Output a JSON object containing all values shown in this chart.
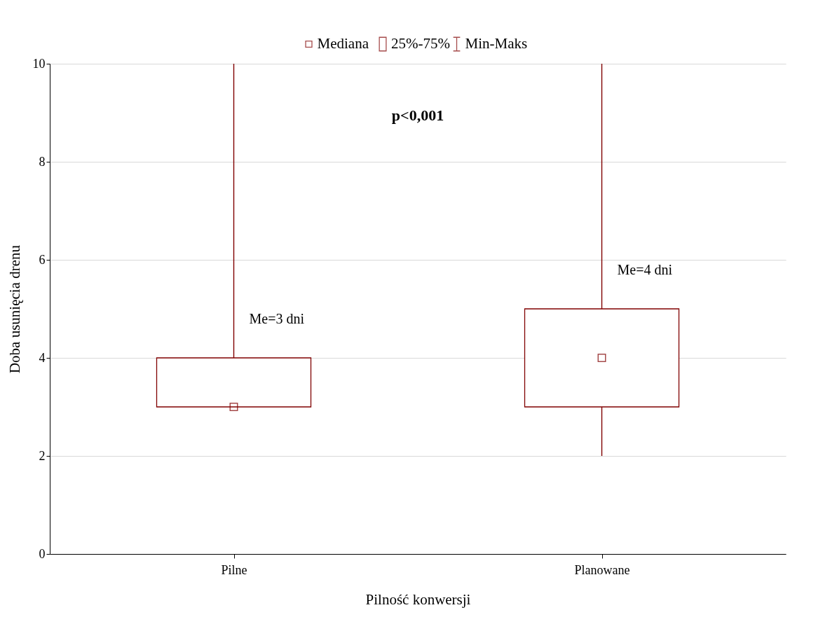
{
  "chart_data": {
    "type": "box",
    "categories": [
      "Pilne",
      "Planowane"
    ],
    "series": [
      {
        "name": "Mediana",
        "type": "scatter",
        "marker": "square",
        "color": "#800000",
        "values": [
          3,
          4
        ]
      },
      {
        "name": "25%-75%",
        "type": "bar",
        "color": "#800000",
        "base": [
          3,
          3
        ],
        "values": [
          1,
          2
        ]
      },
      {
        "name": "Min-Maks",
        "type": "bar",
        "color": "#800000",
        "base": [
          3,
          2
        ],
        "values": [
          7,
          8
        ]
      }
    ],
    "xlabel": "Pilność konwersji",
    "ylabel": "Doba usunięcia drenu",
    "ylim": [
      0,
      10
    ],
    "yticks": [
      0,
      2,
      4,
      6,
      8,
      10
    ],
    "grid": "y",
    "legend": "top",
    "annotations": [
      "p<0,001",
      "Me=3 dni",
      "Me=4 dni"
    ]
  }
}
